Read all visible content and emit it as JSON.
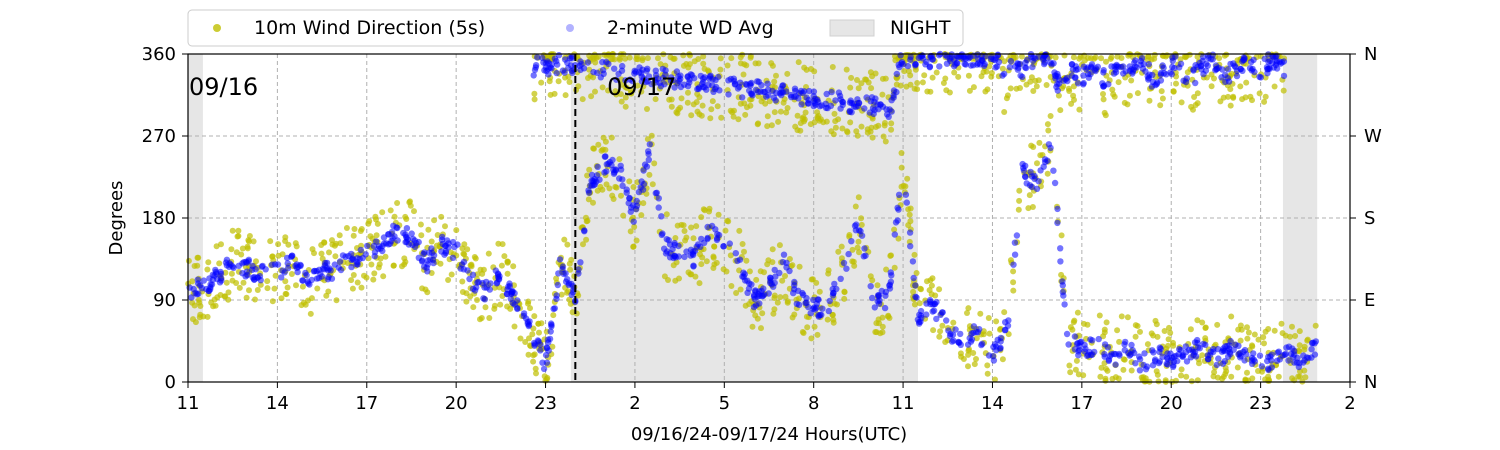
{
  "chart_data": {
    "type": "scatter",
    "xlabel": "09/16/24-09/17/24  Hours(UTC)",
    "ylabel": "Degrees",
    "x_tick_labels": [
      "11",
      "14",
      "17",
      "20",
      "23",
      "2",
      "5",
      "8",
      "11",
      "14",
      "17",
      "20",
      "23",
      "2"
    ],
    "x_range_hours": [
      11,
      50
    ],
    "ylim": [
      0,
      360
    ],
    "y_ticks": [
      0,
      90,
      180,
      270,
      360
    ],
    "y_right_ticks": [
      {
        "value": 0,
        "label": "N"
      },
      {
        "value": 90,
        "label": "E"
      },
      {
        "value": 180,
        "label": "S"
      },
      {
        "value": 270,
        "label": "W"
      },
      {
        "value": 360,
        "label": "N"
      }
    ],
    "grid": true,
    "legend": {
      "placement": "top-left, above plot",
      "entries": [
        {
          "label": "10m Wind Direction (5s)",
          "color": "#bfbf00",
          "marker": "dot"
        },
        {
          "label": "2-minute WD Avg",
          "color": "#0000ff",
          "marker": "dot"
        },
        {
          "label": "NIGHT",
          "color": "#e6e6e6",
          "marker": "patch"
        }
      ]
    },
    "date_annotations": [
      {
        "text": "09/16",
        "x_hour": 11
      },
      {
        "text": "09/17",
        "x_hour": 24.9
      }
    ],
    "midnight_line_hour": 24,
    "night_periods_hours": [
      [
        11,
        11.5
      ],
      [
        23.85,
        35.5
      ],
      [
        47.75,
        48.9
      ]
    ],
    "series": [
      {
        "name": "2-minute WD Avg",
        "color": "#0000ff",
        "x_hours": [
          11.0,
          11.5,
          12.0,
          12.5,
          13.0,
          13.5,
          14.0,
          14.5,
          15.0,
          15.5,
          16.0,
          16.5,
          17.0,
          17.5,
          18.0,
          18.5,
          19.0,
          19.5,
          20.0,
          20.5,
          21.0,
          21.5,
          22.0,
          22.5,
          23.0,
          23.5,
          24.0,
          24.5,
          25.0,
          25.5,
          26.0,
          26.5,
          27.0,
          27.5,
          28.0,
          28.5,
          29.0,
          29.5,
          30.0,
          30.5,
          31.0,
          31.5,
          32.0,
          32.5,
          33.0,
          33.5,
          34.0,
          34.5,
          35.0,
          35.5,
          36.0,
          36.5,
          37.0,
          37.5,
          38.0,
          38.5,
          39.0,
          39.5,
          40.0,
          40.5,
          41.0,
          41.5,
          42.0,
          42.5,
          43.0,
          43.5,
          44.0,
          44.5,
          45.0,
          45.5,
          46.0,
          46.5,
          47.0,
          47.5,
          48.0,
          48.5,
          48.9
        ],
        "values": [
          100,
          105,
          115,
          130,
          125,
          118,
          120,
          130,
          110,
          120,
          125,
          135,
          140,
          150,
          165,
          160,
          130,
          150,
          145,
          110,
          100,
          120,
          85,
          60,
          20,
          130,
          95,
          215,
          240,
          230,
          180,
          255,
          150,
          140,
          135,
          165,
          150,
          130,
          90,
          105,
          130,
          90,
          80,
          85,
          120,
          175,
          90,
          90,
          240,
          70,
          85,
          60,
          40,
          55,
          30,
          60,
          230,
          220,
          260,
          50,
          35,
          40,
          25,
          40,
          20,
          30,
          25,
          30,
          40,
          25,
          35,
          30,
          20,
          25,
          30,
          20,
          45
        ]
      },
      {
        "name": "10m Wind Direction (5s)",
        "color": "#bfbf00",
        "x_hours": [
          11.0,
          11.5,
          12.0,
          12.5,
          13.0,
          13.5,
          14.0,
          14.5,
          15.0,
          15.5,
          16.0,
          16.5,
          17.0,
          17.5,
          18.0,
          18.5,
          19.0,
          19.5,
          20.0,
          20.5,
          21.0,
          21.5,
          22.0,
          22.5,
          23.0,
          23.5,
          24.0,
          24.5,
          25.0,
          25.5,
          26.0,
          26.5,
          27.0,
          27.5,
          28.0,
          28.5,
          29.0,
          29.5,
          30.0,
          30.5,
          31.0,
          31.5,
          32.0,
          32.5,
          33.0,
          33.5,
          34.0,
          34.5,
          35.0,
          35.5,
          36.0,
          36.5,
          37.0,
          37.5,
          38.0,
          38.5,
          39.0,
          39.5,
          40.0,
          40.5,
          41.0,
          41.5,
          42.0,
          42.5,
          43.0,
          43.5,
          44.0,
          44.5,
          45.0,
          45.5,
          46.0,
          46.5,
          47.0,
          47.5,
          48.0,
          48.5,
          48.9
        ],
        "values": [
          100,
          105,
          115,
          130,
          125,
          118,
          120,
          130,
          110,
          120,
          125,
          135,
          140,
          150,
          165,
          160,
          130,
          150,
          145,
          110,
          100,
          120,
          85,
          60,
          20,
          130,
          95,
          215,
          240,
          230,
          180,
          255,
          150,
          140,
          135,
          165,
          150,
          130,
          90,
          105,
          130,
          90,
          80,
          85,
          120,
          175,
          90,
          90,
          240,
          70,
          85,
          60,
          40,
          55,
          30,
          60,
          230,
          220,
          260,
          50,
          35,
          40,
          25,
          40,
          20,
          30,
          25,
          30,
          40,
          25,
          35,
          30,
          20,
          25,
          30,
          20,
          45
        ]
      },
      {
        "name": "2-minute WD Avg (north branch)",
        "color": "#0000ff",
        "x_hours": [
          22.6,
          22.9,
          23.2,
          23.4,
          34.6,
          34.8,
          34.9,
          38.2,
          38.4,
          38.7,
          39.0,
          39.3,
          39.7,
          40.0,
          40.3,
          40.6,
          41.0,
          41.4,
          41.8,
          42.2,
          42.6,
          43.0,
          43.4,
          43.8,
          44.2,
          44.6,
          45.0,
          45.4,
          45.8,
          46.2,
          46.6,
          47.0,
          47.4,
          47.8
        ],
        "values": [
          345,
          355,
          340,
          350,
          300,
          330,
          355,
          355,
          330,
          350,
          340,
          355,
          360,
          345,
          320,
          340,
          335,
          350,
          330,
          345,
          340,
          355,
          330,
          340,
          350,
          330,
          345,
          355,
          335,
          345,
          350,
          340,
          355,
          345
        ]
      },
      {
        "name": "10m Wind Direction (5s) (north branch)",
        "color": "#bfbf00",
        "x_hours": [
          22.6,
          22.9,
          23.2,
          23.4,
          34.6,
          34.8,
          34.9,
          38.2,
          38.4,
          38.7,
          39.0,
          39.3,
          39.7,
          40.0,
          40.3,
          40.6,
          41.0,
          41.4,
          41.8,
          42.2,
          42.6,
          43.0,
          43.4,
          43.8,
          44.2,
          44.6,
          45.0,
          45.4,
          45.8,
          46.2,
          46.6,
          47.0,
          47.4,
          47.8
        ],
        "values": [
          345,
          355,
          340,
          350,
          300,
          330,
          355,
          355,
          330,
          350,
          340,
          355,
          360,
          345,
          320,
          340,
          335,
          350,
          330,
          345,
          340,
          355,
          330,
          340,
          350,
          330,
          345,
          355,
          335,
          345,
          350,
          340,
          355,
          345
        ]
      }
    ]
  }
}
